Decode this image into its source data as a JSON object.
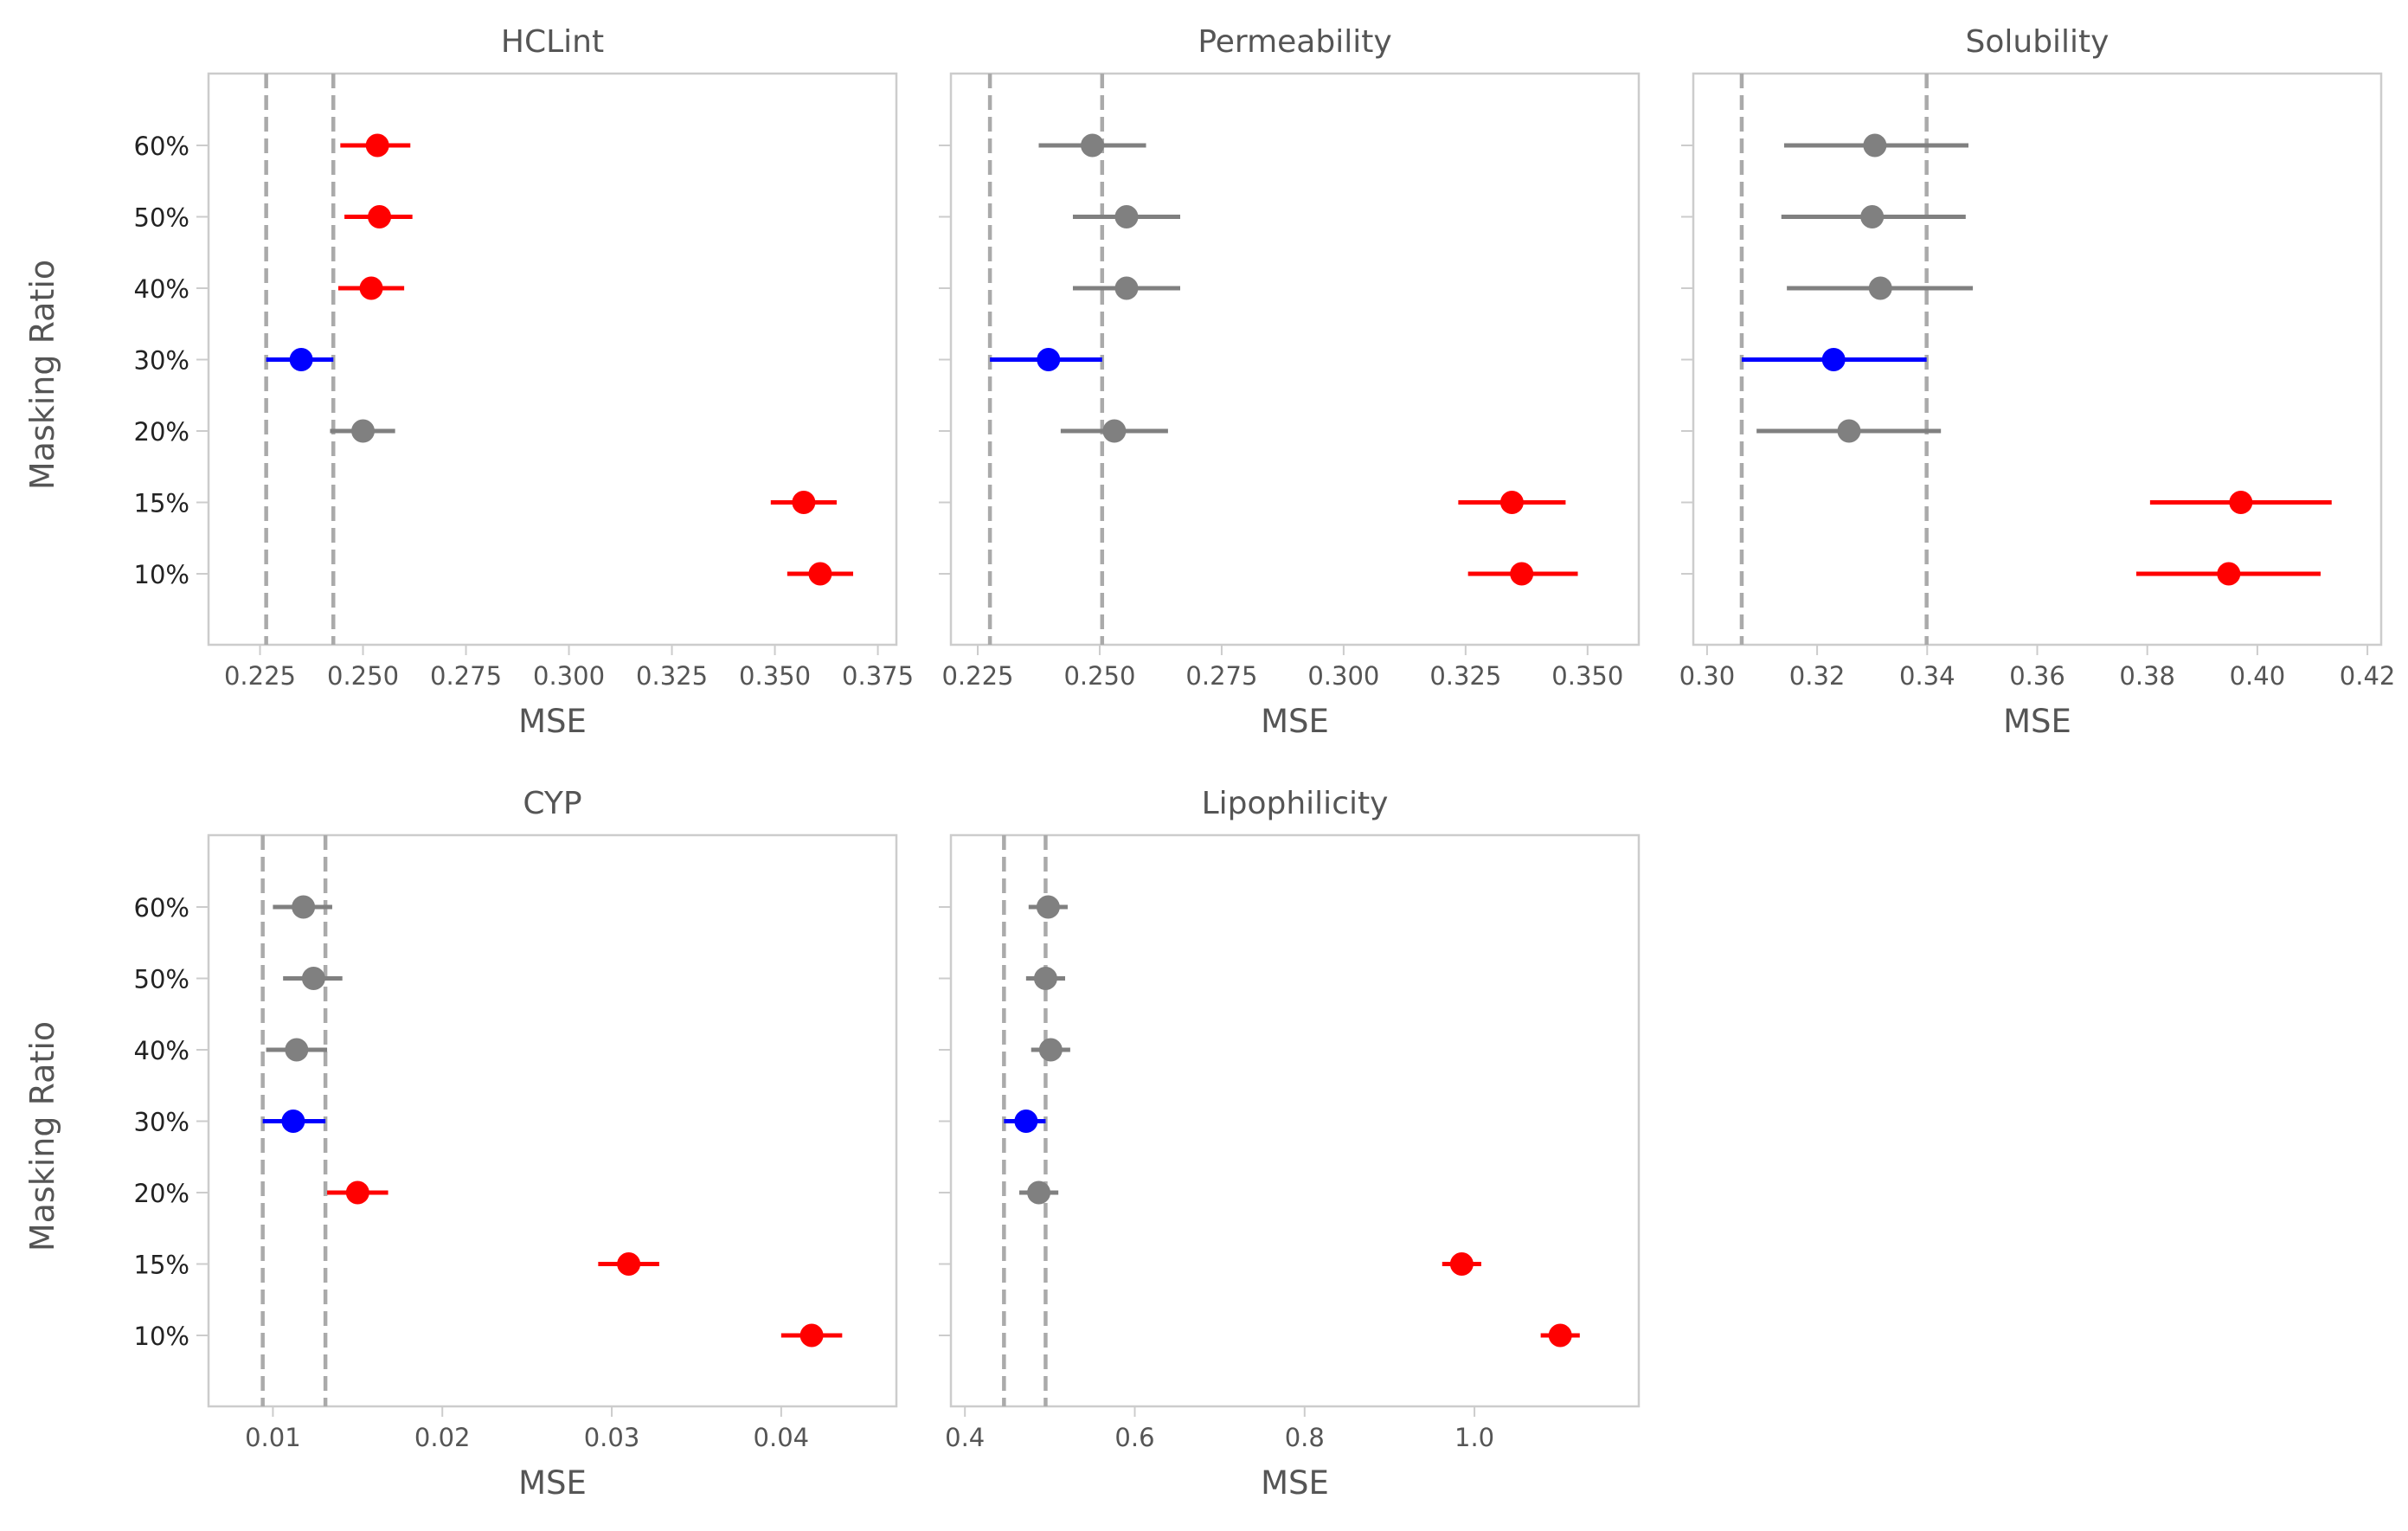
{
  "figure": {
    "ylabel": "Masking Ratio",
    "colors": {
      "significant_worse": "#ff0000",
      "best": "#0000ff",
      "neutral": "#808080",
      "reference": "#aaaaaa"
    }
  },
  "chart_data": [
    {
      "type": "scatter",
      "title": "HCLint",
      "xlabel": "MSE",
      "ylabel": "Masking Ratio",
      "categories": [
        "60%",
        "50%",
        "40%",
        "30%",
        "20%",
        "15%",
        "10%"
      ],
      "xticks": [
        "0.225",
        "0.250",
        "0.275",
        "0.300",
        "0.325",
        "0.350",
        "0.375"
      ],
      "tick_values": [
        0.225,
        0.25,
        0.275,
        0.3,
        0.325,
        0.35,
        0.375
      ],
      "xlim": [
        0.2125,
        0.3795
      ],
      "ref_lines": [
        0.2265,
        0.2428
      ],
      "points": [
        {
          "category": "60%",
          "value": 0.2535,
          "lo": 0.2445,
          "hi": 0.2615,
          "color": "red"
        },
        {
          "category": "50%",
          "value": 0.254,
          "lo": 0.2455,
          "hi": 0.262,
          "color": "red"
        },
        {
          "category": "40%",
          "value": 0.252,
          "lo": 0.244,
          "hi": 0.26,
          "color": "red"
        },
        {
          "category": "30%",
          "value": 0.235,
          "lo": 0.2265,
          "hi": 0.2428,
          "color": "blue"
        },
        {
          "category": "20%",
          "value": 0.25,
          "lo": 0.242,
          "hi": 0.2578,
          "color": "gray"
        },
        {
          "category": "15%",
          "value": 0.357,
          "lo": 0.349,
          "hi": 0.365,
          "color": "red"
        },
        {
          "category": "10%",
          "value": 0.361,
          "lo": 0.353,
          "hi": 0.369,
          "color": "red"
        }
      ]
    },
    {
      "type": "scatter",
      "title": "Permeability",
      "xlabel": "MSE",
      "ylabel": "",
      "categories": [
        "60%",
        "50%",
        "40%",
        "30%",
        "20%",
        "15%",
        "10%"
      ],
      "xticks": [
        "0.225",
        "0.250",
        "0.275",
        "0.300",
        "0.325",
        "0.350"
      ],
      "tick_values": [
        0.225,
        0.25,
        0.275,
        0.3,
        0.325,
        0.35
      ],
      "xlim": [
        0.2195,
        0.3605
      ],
      "ref_lines": [
        0.2275,
        0.2505
      ],
      "points": [
        {
          "category": "60%",
          "value": 0.2485,
          "lo": 0.2375,
          "hi": 0.2595,
          "color": "gray"
        },
        {
          "category": "50%",
          "value": 0.2555,
          "lo": 0.2445,
          "hi": 0.2665,
          "color": "gray"
        },
        {
          "category": "40%",
          "value": 0.2555,
          "lo": 0.2445,
          "hi": 0.2665,
          "color": "gray"
        },
        {
          "category": "30%",
          "value": 0.2395,
          "lo": 0.2275,
          "hi": 0.2505,
          "color": "blue"
        },
        {
          "category": "20%",
          "value": 0.253,
          "lo": 0.242,
          "hi": 0.264,
          "color": "gray"
        },
        {
          "category": "15%",
          "value": 0.3345,
          "lo": 0.3235,
          "hi": 0.3455,
          "color": "red"
        },
        {
          "category": "10%",
          "value": 0.3365,
          "lo": 0.3255,
          "hi": 0.348,
          "color": "red"
        }
      ]
    },
    {
      "type": "scatter",
      "title": "Solubility",
      "xlabel": "MSE",
      "ylabel": "",
      "categories": [
        "60%",
        "50%",
        "40%",
        "30%",
        "20%",
        "15%",
        "10%"
      ],
      "xticks": [
        "0.30",
        "0.32",
        "0.34",
        "0.36",
        "0.38",
        "0.40",
        "0.42"
      ],
      "tick_values": [
        0.3,
        0.32,
        0.34,
        0.36,
        0.38,
        0.4,
        0.42
      ],
      "xlim": [
        0.2975,
        0.4225
      ],
      "ref_lines": [
        0.3063,
        0.3399
      ],
      "points": [
        {
          "category": "60%",
          "value": 0.3305,
          "lo": 0.314,
          "hi": 0.3475,
          "color": "gray"
        },
        {
          "category": "50%",
          "value": 0.33,
          "lo": 0.3135,
          "hi": 0.347,
          "color": "gray"
        },
        {
          "category": "40%",
          "value": 0.3315,
          "lo": 0.3145,
          "hi": 0.3483,
          "color": "gray"
        },
        {
          "category": "30%",
          "value": 0.323,
          "lo": 0.3063,
          "hi": 0.3399,
          "color": "blue"
        },
        {
          "category": "20%",
          "value": 0.3258,
          "lo": 0.309,
          "hi": 0.3425,
          "color": "gray"
        },
        {
          "category": "15%",
          "value": 0.397,
          "lo": 0.3805,
          "hi": 0.4135,
          "color": "red"
        },
        {
          "category": "10%",
          "value": 0.3948,
          "lo": 0.378,
          "hi": 0.4115,
          "color": "red"
        }
      ]
    },
    {
      "type": "scatter",
      "title": "CYP",
      "xlabel": "MSE",
      "ylabel": "Masking Ratio",
      "categories": [
        "60%",
        "50%",
        "40%",
        "30%",
        "20%",
        "15%",
        "10%"
      ],
      "xticks": [
        "0.01",
        "0.02",
        "0.03",
        "0.04"
      ],
      "tick_values": [
        0.01,
        0.02,
        0.03,
        0.04
      ],
      "xlim": [
        0.0062,
        0.0468
      ],
      "ref_lines": [
        0.0094,
        0.0131
      ],
      "points": [
        {
          "category": "60%",
          "value": 0.0118,
          "lo": 0.01,
          "hi": 0.0135,
          "color": "gray"
        },
        {
          "category": "50%",
          "value": 0.0124,
          "lo": 0.0106,
          "hi": 0.0141,
          "color": "gray"
        },
        {
          "category": "40%",
          "value": 0.0114,
          "lo": 0.0096,
          "hi": 0.0132,
          "color": "gray"
        },
        {
          "category": "30%",
          "value": 0.0112,
          "lo": 0.0094,
          "hi": 0.0131,
          "color": "blue"
        },
        {
          "category": "20%",
          "value": 0.015,
          "lo": 0.0132,
          "hi": 0.0168,
          "color": "red"
        },
        {
          "category": "15%",
          "value": 0.031,
          "lo": 0.0292,
          "hi": 0.0328,
          "color": "red"
        },
        {
          "category": "10%",
          "value": 0.0418,
          "lo": 0.04,
          "hi": 0.0436,
          "color": "red"
        }
      ]
    },
    {
      "type": "scatter",
      "title": "Lipophilicity",
      "xlabel": "MSE",
      "ylabel": "",
      "categories": [
        "60%",
        "50%",
        "40%",
        "30%",
        "20%",
        "15%",
        "10%"
      ],
      "xticks": [
        "0.4",
        "0.6",
        "0.8",
        "1.0"
      ],
      "tick_values": [
        0.4,
        0.6,
        0.8,
        1.0
      ],
      "xlim": [
        0.3835,
        1.1935
      ],
      "ref_lines": [
        0.446,
        0.495
      ],
      "points": [
        {
          "category": "60%",
          "value": 0.498,
          "lo": 0.475,
          "hi": 0.521,
          "color": "gray"
        },
        {
          "category": "50%",
          "value": 0.495,
          "lo": 0.472,
          "hi": 0.518,
          "color": "gray"
        },
        {
          "category": "40%",
          "value": 0.501,
          "lo": 0.478,
          "hi": 0.524,
          "color": "gray"
        },
        {
          "category": "30%",
          "value": 0.472,
          "lo": 0.446,
          "hi": 0.495,
          "color": "blue"
        },
        {
          "category": "20%",
          "value": 0.487,
          "lo": 0.464,
          "hi": 0.51,
          "color": "gray"
        },
        {
          "category": "15%",
          "value": 0.985,
          "lo": 0.962,
          "hi": 1.008,
          "color": "red"
        },
        {
          "category": "10%",
          "value": 1.101,
          "lo": 1.078,
          "hi": 1.124,
          "color": "red"
        }
      ]
    }
  ]
}
